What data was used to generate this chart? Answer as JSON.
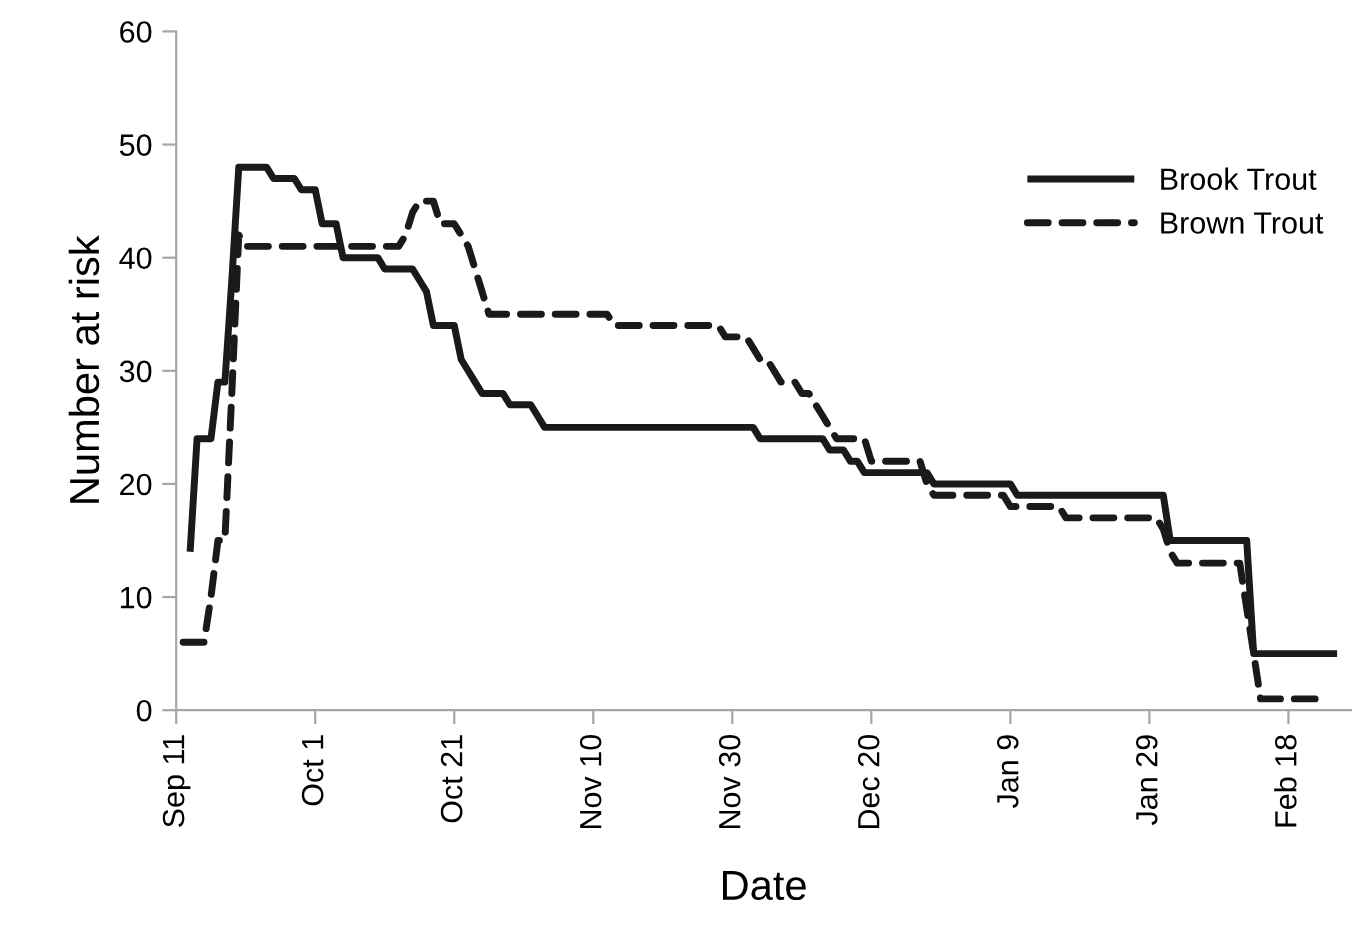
{
  "chart_data": {
    "type": "line",
    "xlabel": "Date",
    "ylabel": "Number at risk",
    "ylim": [
      0,
      60
    ],
    "yticks": [
      0,
      10,
      20,
      30,
      40,
      50,
      60
    ],
    "categories": [
      "Sep 11",
      null,
      null,
      null,
      null,
      null,
      null,
      null,
      null,
      null,
      null,
      null,
      null,
      null,
      null,
      null,
      null,
      null,
      null,
      null,
      "Oct 1",
      null,
      null,
      null,
      null,
      null,
      null,
      null,
      null,
      null,
      null,
      null,
      null,
      null,
      null,
      null,
      null,
      null,
      null,
      null,
      "Oct 21",
      null,
      null,
      null,
      null,
      null,
      null,
      null,
      null,
      null,
      null,
      null,
      null,
      null,
      null,
      null,
      null,
      null,
      null,
      null,
      "Nov 10",
      null,
      null,
      null,
      null,
      null,
      null,
      null,
      null,
      null,
      null,
      null,
      null,
      null,
      null,
      null,
      null,
      null,
      null,
      null,
      "Nov 30",
      null,
      null,
      null,
      null,
      null,
      null,
      null,
      null,
      null,
      null,
      null,
      null,
      null,
      null,
      null,
      null,
      null,
      null,
      null,
      "Dec 20",
      null,
      null,
      null,
      null,
      null,
      null,
      null,
      null,
      null,
      null,
      null,
      null,
      null,
      null,
      null,
      null,
      null,
      null,
      null,
      "Jan 9",
      null,
      null,
      null,
      null,
      null,
      null,
      null,
      null,
      null,
      null,
      null,
      null,
      null,
      null,
      null,
      null,
      null,
      null,
      null,
      "Jan 29",
      null,
      null,
      null,
      null,
      null,
      null,
      null,
      null,
      null,
      null,
      null,
      null,
      null,
      null,
      null,
      null,
      null,
      null,
      null,
      "Feb 18",
      null,
      null,
      null,
      null,
      null,
      null,
      null,
      null,
      null
    ],
    "grid": false,
    "legend": "top right",
    "marker": "none",
    "series": [
      {
        "name": "Brook Trout",
        "color": "#1a1a1a",
        "line_style": "solid",
        "values": [
          null,
          null,
          14,
          24,
          24,
          24,
          29,
          29,
          38,
          48,
          48,
          48,
          48,
          48,
          47,
          47,
          47,
          47,
          46,
          46,
          46,
          43,
          43,
          43,
          40,
          40,
          40,
          40,
          40,
          40,
          39,
          39,
          39,
          39,
          39,
          38,
          37,
          34,
          34,
          34,
          34,
          31,
          30,
          29,
          28,
          28,
          28,
          28,
          27,
          27,
          27,
          27,
          26,
          25,
          25,
          25,
          25,
          25,
          25,
          25,
          25,
          25,
          25,
          25,
          25,
          25,
          25,
          25,
          25,
          25,
          25,
          25,
          25,
          25,
          25,
          25,
          25,
          25,
          25,
          25,
          25,
          25,
          25,
          25,
          24,
          24,
          24,
          24,
          24,
          24,
          24,
          24,
          24,
          24,
          23,
          23,
          23,
          22,
          22,
          21,
          21,
          21,
          21,
          21,
          21,
          21,
          21,
          21,
          21,
          20,
          20,
          20,
          20,
          20,
          20,
          20,
          20,
          20,
          20,
          20,
          20,
          19,
          19,
          19,
          19,
          19,
          19,
          19,
          19,
          19,
          19,
          19,
          19,
          19,
          19,
          19,
          19,
          19,
          19,
          19,
          19,
          19,
          19,
          15,
          15,
          15,
          15,
          15,
          15,
          15,
          15,
          15,
          15,
          15,
          15,
          5,
          5,
          5,
          5,
          5,
          5,
          5,
          5,
          5,
          5,
          5,
          5,
          5,
          null,
          null
        ]
      },
      {
        "name": "Brown Trout",
        "color": "#1a1a1a",
        "line_style": "dashed",
        "values": [
          null,
          6,
          6,
          6,
          6,
          10,
          15,
          15,
          28,
          42,
          41,
          41,
          41,
          41,
          41,
          41,
          41,
          41,
          41,
          41,
          41,
          41,
          41,
          41,
          41,
          41,
          41,
          41,
          41,
          41,
          41,
          41,
          41,
          42,
          44,
          45,
          45,
          45,
          43,
          43,
          43,
          42,
          41,
          39,
          37,
          35,
          35,
          35,
          35,
          35,
          35,
          35,
          35,
          35,
          35,
          35,
          35,
          35,
          35,
          35,
          35,
          35,
          35,
          34,
          34,
          34,
          34,
          34,
          34,
          34,
          34,
          34,
          34,
          34,
          34,
          34,
          34,
          34,
          34,
          33,
          33,
          33,
          33,
          32,
          31,
          31,
          30,
          29,
          29,
          29,
          28,
          28,
          27,
          26,
          25,
          24,
          24,
          24,
          24,
          24,
          22,
          22,
          22,
          22,
          22,
          22,
          22,
          22,
          20,
          19,
          19,
          19,
          19,
          19,
          19,
          19,
          19,
          19,
          19,
          19,
          18,
          18,
          18,
          18,
          18,
          18,
          18,
          18,
          17,
          17,
          17,
          17,
          17,
          17,
          17,
          17,
          17,
          17,
          17,
          17,
          17,
          17,
          16,
          14,
          13,
          13,
          13,
          13,
          13,
          13,
          13,
          13,
          13,
          13,
          9,
          5,
          1,
          1,
          1,
          1,
          1,
          1,
          1,
          1,
          1,
          1,
          null,
          null,
          null,
          null
        ]
      }
    ]
  }
}
